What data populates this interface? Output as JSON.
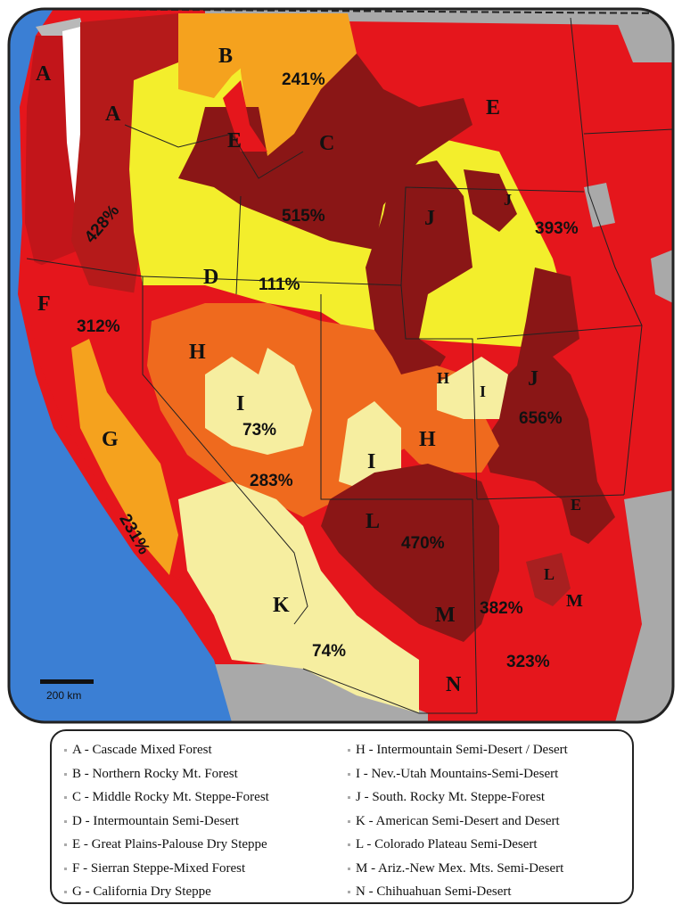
{
  "map": {
    "colors": {
      "ocean": "#3b7fd4",
      "red": "#e5161c",
      "dark_red": "#8a1616",
      "yellow": "#f3ee2c",
      "pale_yellow": "#f6eea0",
      "orange": "#ef6a1e",
      "light_orange": "#f5a21e",
      "gray": "#a9a9a9"
    },
    "region_labels": [
      "A",
      "A",
      "B",
      "C",
      "D",
      "E",
      "E",
      "E",
      "F",
      "G",
      "H",
      "H",
      "H",
      "I",
      "I",
      "I",
      "J",
      "J",
      "J",
      "K",
      "L",
      "L",
      "M",
      "M",
      "N"
    ],
    "percent_labels": [
      "428%",
      "241%",
      "515%",
      "393%",
      "111%",
      "312%",
      "73%",
      "283%",
      "656%",
      "231%",
      "470%",
      "382%",
      "323%",
      "74%"
    ],
    "scale_bar": "200 km"
  },
  "legend": {
    "left": [
      "A - Cascade Mixed Forest",
      "B - Northern Rocky Mt. Forest",
      "C - Middle Rocky Mt. Steppe-Forest",
      "D - Intermountain Semi-Desert",
      "E - Great Plains-Palouse Dry Steppe",
      "F - Sierran Steppe-Mixed Forest",
      "G - California Dry Steppe"
    ],
    "right": [
      "H - Intermountain Semi-Desert / Desert",
      "I - Nev.-Utah Mountains-Semi-Desert",
      "J - South. Rocky Mt. Steppe-Forest",
      "K - American Semi-Desert and Desert",
      "L - Colorado Plateau Semi-Desert",
      "M - Ariz.-New Mex. Mts. Semi-Desert",
      "N - Chihuahuan Semi-Desert"
    ]
  }
}
